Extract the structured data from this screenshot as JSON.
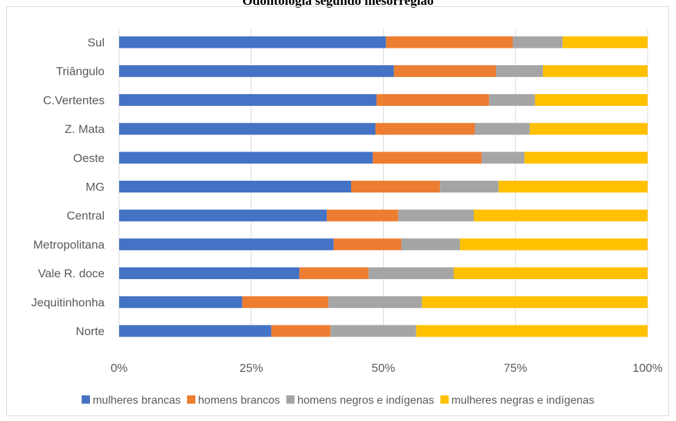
{
  "chart_data": {
    "type": "bar",
    "orientation": "horizontal",
    "stacked": "percent",
    "title": "Odontologia segundo mesorregião",
    "categories": [
      "Sul",
      "Triângulo",
      "C.Vertentes",
      "Z. Mata",
      "Oeste",
      "MG",
      "Central",
      "Metropolitana",
      "Vale R. doce",
      "Jequitinhonha",
      "Norte"
    ],
    "series": [
      {
        "name": "mulheres brancas",
        "color": "#4472c4",
        "values": [
          50.5,
          52,
          48.7,
          48.5,
          48,
          43.9,
          39.3,
          40.6,
          34.1,
          23.3,
          28.8
        ]
      },
      {
        "name": "homens brancos",
        "color": "#ed7d31",
        "values": [
          24,
          19.3,
          21.3,
          18.8,
          20.6,
          16.8,
          13.5,
          12.8,
          13.1,
          16.3,
          11.2
        ]
      },
      {
        "name": "homens negros e indígenas",
        "color": "#a5a5a5",
        "values": [
          9.4,
          8.9,
          8.7,
          10.4,
          8.1,
          11.1,
          14.3,
          11.1,
          16.1,
          17.7,
          16.2
        ]
      },
      {
        "name": "mulheres negras e indígenas",
        "color": "#ffc000",
        "values": [
          16.1,
          19.8,
          21.3,
          22.3,
          23.3,
          28.2,
          32.9,
          35.5,
          36.7,
          42.7,
          43.8
        ]
      }
    ],
    "xlim": [
      0,
      100
    ],
    "xticks": [
      "0%",
      "25%",
      "50%",
      "75%",
      "100%"
    ],
    "grid": "vertical",
    "legend": "bottom"
  }
}
